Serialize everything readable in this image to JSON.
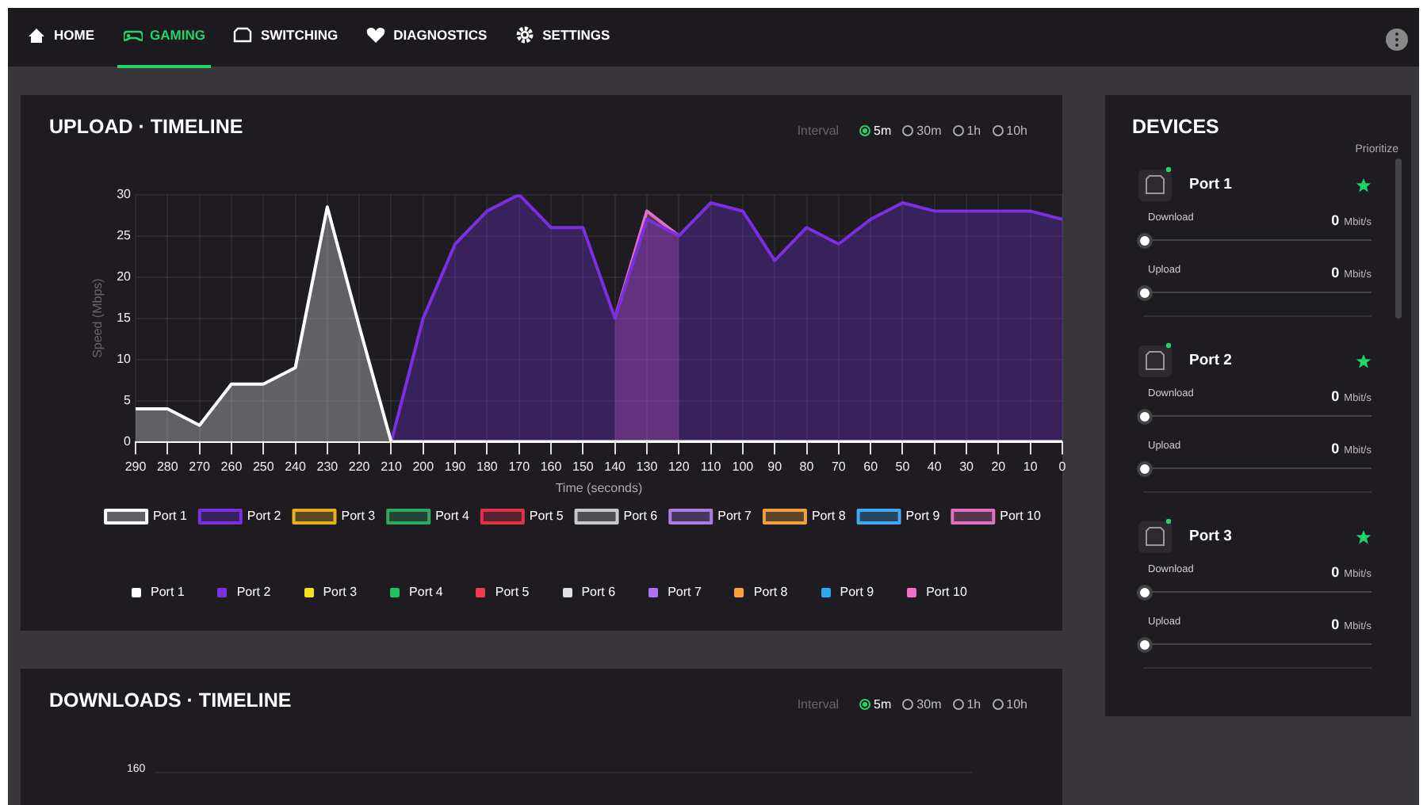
{
  "chart_data": [
    {
      "type": "other",
      "annotations": [
        "HOME",
        "GAMING",
        "SWITCHING",
        "DIAGNOSTICS",
        "SETTINGS"
      ]
    },
    {
      "type": "area",
      "title": "UPLOAD · TIMELINE",
      "xlabel": "Time (seconds)",
      "ylabel": "Speed (Mbps)",
      "annotations": [
        "Interval",
        "5m",
        "30m",
        "1h",
        "10h"
      ],
      "x": [
        290,
        280,
        270,
        260,
        250,
        240,
        230,
        220,
        210,
        200,
        190,
        180,
        170,
        160,
        150,
        140,
        130,
        120,
        110,
        100,
        90,
        80,
        70,
        60,
        50,
        40,
        30,
        20,
        10,
        0
      ],
      "xlim": [
        290,
        0
      ],
      "xticks": [
        290,
        280,
        270,
        260,
        250,
        240,
        230,
        220,
        210,
        200,
        190,
        180,
        170,
        160,
        150,
        140,
        130,
        120,
        110,
        100,
        90,
        80,
        70,
        60,
        50,
        40,
        30,
        20,
        10,
        0
      ],
      "ylim": [
        0,
        30
      ],
      "yticks": [
        0,
        5,
        10,
        15,
        20,
        25,
        30
      ],
      "grid": true,
      "legend": "bottom",
      "marker": "none",
      "series": [
        {
          "name": "Port 1",
          "color": "#ffffff",
          "values": [
            4,
            4,
            2,
            7,
            7,
            9,
            28.5,
            14,
            0,
            0,
            0,
            0,
            0,
            0,
            0,
            0,
            0,
            0,
            0,
            0,
            0,
            0,
            0,
            0,
            0,
            0,
            0,
            0,
            0,
            0
          ]
        },
        {
          "name": "Port 2",
          "color": "#7b2fe0",
          "values": [
            null,
            null,
            null,
            null,
            null,
            null,
            null,
            null,
            0,
            15,
            24,
            28,
            30,
            26,
            26,
            15,
            27,
            25,
            29,
            28,
            22,
            26,
            24,
            27,
            29,
            28,
            28,
            28,
            28,
            27
          ]
        },
        {
          "name": "Port 3",
          "color": "#e8b020",
          "values": [
            null,
            null,
            null,
            null,
            null,
            null,
            null,
            null,
            null,
            null,
            null,
            null,
            null,
            null,
            null,
            null,
            null,
            null,
            null,
            null,
            null,
            null,
            null,
            null,
            null,
            null,
            null,
            null,
            null,
            null
          ]
        },
        {
          "name": "Port 4",
          "color": "#2ea860",
          "values": [
            null,
            null,
            null,
            null,
            null,
            null,
            null,
            null,
            null,
            null,
            null,
            null,
            null,
            null,
            null,
            null,
            null,
            null,
            null,
            null,
            null,
            null,
            null,
            null,
            null,
            null,
            null,
            null,
            null,
            null
          ]
        },
        {
          "name": "Port 5",
          "color": "#e0304a",
          "values": [
            null,
            null,
            null,
            null,
            null,
            null,
            null,
            null,
            null,
            null,
            null,
            null,
            null,
            null,
            null,
            null,
            null,
            null,
            null,
            null,
            null,
            null,
            null,
            null,
            null,
            null,
            null,
            null,
            null,
            null
          ]
        },
        {
          "name": "Port 6",
          "color": "#c8c8c8",
          "values": [
            null,
            null,
            null,
            null,
            null,
            null,
            null,
            null,
            null,
            null,
            null,
            null,
            null,
            null,
            null,
            null,
            null,
            null,
            null,
            null,
            null,
            null,
            null,
            null,
            null,
            null,
            null,
            null,
            null,
            null
          ]
        },
        {
          "name": "Port 7",
          "color": "#a87ee0",
          "values": [
            null,
            null,
            null,
            null,
            null,
            null,
            null,
            null,
            null,
            null,
            null,
            null,
            null,
            null,
            null,
            null,
            null,
            null,
            null,
            null,
            null,
            null,
            null,
            null,
            null,
            null,
            null,
            null,
            null,
            null
          ]
        },
        {
          "name": "Port 8",
          "color": "#f0a040",
          "values": [
            null,
            null,
            null,
            null,
            null,
            null,
            null,
            null,
            null,
            null,
            null,
            null,
            null,
            null,
            null,
            null,
            null,
            null,
            null,
            null,
            null,
            null,
            null,
            null,
            null,
            null,
            null,
            null,
            null,
            null
          ]
        },
        {
          "name": "Port 9",
          "color": "#40a8f0",
          "values": [
            null,
            null,
            null,
            null,
            null,
            null,
            null,
            null,
            null,
            null,
            null,
            null,
            null,
            null,
            null,
            null,
            null,
            null,
            null,
            null,
            null,
            null,
            null,
            null,
            null,
            null,
            null,
            null,
            null,
            null
          ]
        },
        {
          "name": "Port 10",
          "color": "#e070c0",
          "values": [
            null,
            null,
            null,
            null,
            null,
            null,
            null,
            null,
            null,
            null,
            null,
            null,
            null,
            null,
            null,
            15,
            28,
            25,
            null,
            null,
            null,
            null,
            null,
            null,
            null,
            null,
            null,
            null,
            null,
            null
          ]
        }
      ]
    },
    {
      "type": "other",
      "title": "DOWNLOADS · TIMELINE",
      "annotations": [
        "Interval",
        "5m",
        "30m",
        "1h",
        "10h",
        "160"
      ],
      "series": [
        {
          "name": "Port 1",
          "color": "#ffffff"
        },
        {
          "name": "Port 2",
          "color": "#7b2fe0"
        },
        {
          "name": "Port 3",
          "color": "#f5e020"
        },
        {
          "name": "Port 4",
          "color": "#20c060"
        },
        {
          "name": "Port 5",
          "color": "#f03850"
        },
        {
          "name": "Port 6",
          "color": "#e0e0e0"
        },
        {
          "name": "Port 7",
          "color": "#b070f0"
        },
        {
          "name": "Port 8",
          "color": "#f8a040"
        },
        {
          "name": "Port 9",
          "color": "#30a8f0"
        },
        {
          "name": "Port 10",
          "color": "#f070c8"
        }
      ]
    },
    {
      "type": "other",
      "title": "DEVICES",
      "annotations": [
        "Prioritize",
        "Port 1",
        "Download",
        "0",
        "Mbit/s",
        "Upload",
        "0",
        "Mbit/s",
        "Port 2",
        "Download",
        "0",
        "Mbit/s",
        "Upload",
        "0",
        "Mbit/s",
        "Port 3",
        "Download",
        "0",
        "Mbit/s",
        "Upload",
        "0",
        "Mbit/s"
      ]
    }
  ]
}
